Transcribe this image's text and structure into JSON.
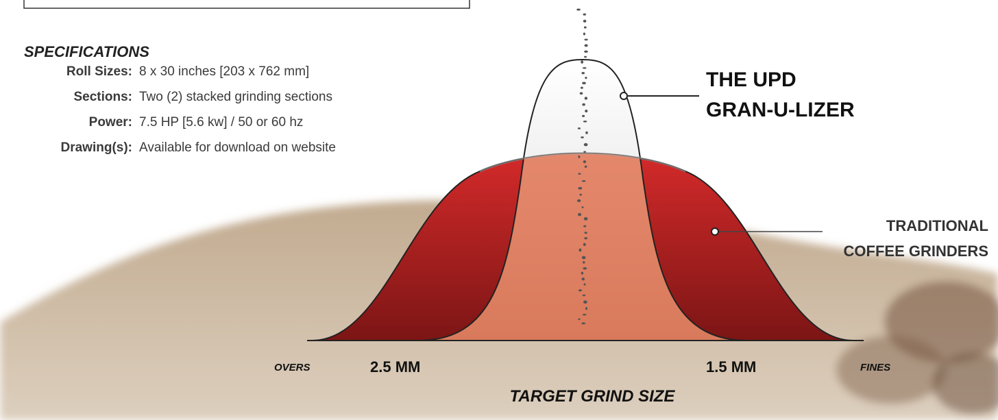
{
  "specifications": {
    "heading": "SPECIFICATIONS",
    "rows": [
      {
        "label": "Roll Sizes:",
        "value": "8 x 30 inches [203 x 762 mm]"
      },
      {
        "label": "Sections:",
        "value": "Two (2) stacked grinding sections"
      },
      {
        "label": "Power:",
        "value": "7.5 HP [5.6 kw] / 50 or 60 hz"
      },
      {
        "label": "Drawing(s):",
        "value": "Available for download on website"
      }
    ]
  },
  "callouts": {
    "granulizer": [
      "THE UPD",
      "GRAN-U-LIZER"
    ],
    "traditional": [
      "TRADITIONAL",
      "COFFEE GRINDERS"
    ]
  },
  "axis": {
    "left_end": "OVERS",
    "left_size": "2.5 MM",
    "right_size": "1.5 MM",
    "right_end": "FINES",
    "title": "TARGET GRIND SIZE"
  }
}
